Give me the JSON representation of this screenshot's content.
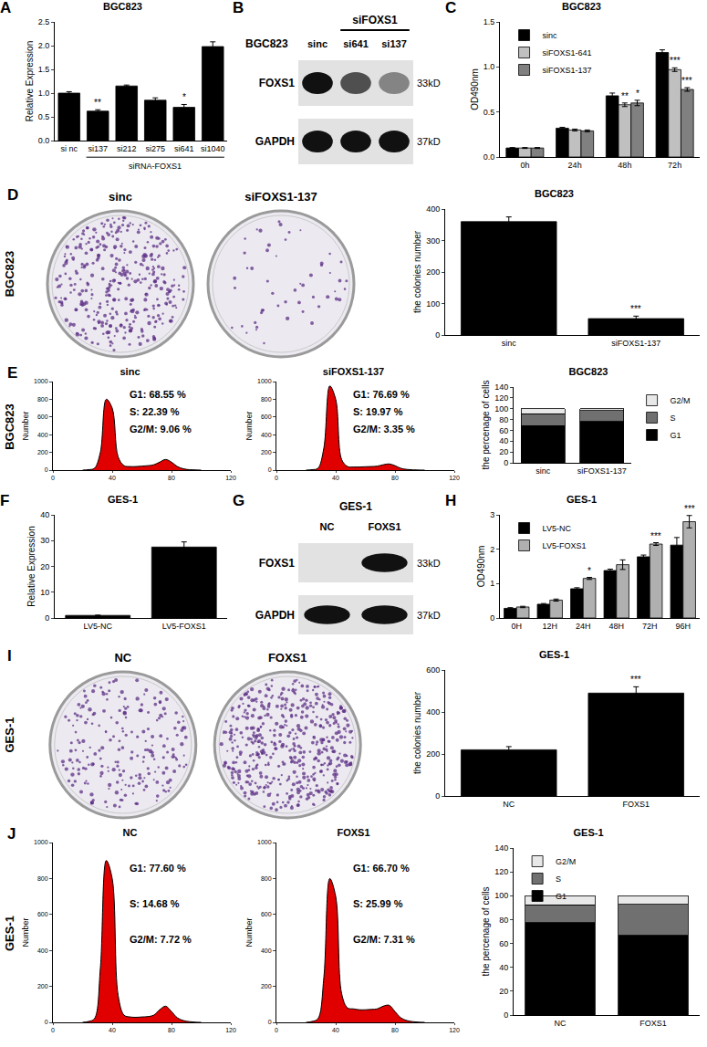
{
  "chart_data": [
    {
      "panel": "A",
      "type": "bar",
      "title": "BGC823",
      "categories": [
        "si nc",
        "si137",
        "si212",
        "si275",
        "si641",
        "si1040"
      ],
      "values": [
        1,
        0.62,
        1.15,
        0.85,
        0.7,
        1.98
      ],
      "errors": [
        0.03,
        0.03,
        0.02,
        0.05,
        0.06,
        0.1
      ],
      "color": "#000000",
      "ylabel": "Relative Expression",
      "ylim": [
        0,
        2.5
      ],
      "yticks": [
        {
          "value": 0,
          "label": "0.0"
        },
        {
          "value": 0.5,
          "label": "0.5"
        },
        {
          "value": 1,
          "label": "1.0"
        },
        {
          "value": 1.5,
          "label": "1.5"
        },
        {
          "value": 2,
          "label": "2.0"
        },
        {
          "value": 2.5,
          "label": "2.5"
        }
      ],
      "annotations": [
        {
          "category": "si137",
          "text": "**"
        },
        {
          "category": "si641",
          "text": "*"
        }
      ],
      "group_label": {
        "text": "siRNA-FOXS1",
        "from": "si137",
        "to": "si1040"
      }
    },
    {
      "panel": "C",
      "type": "bar",
      "title": "BGC823",
      "categories": [
        "0h",
        "24h",
        "48h",
        "72h"
      ],
      "series": [
        {
          "name": "sinc",
          "color": "#000000",
          "values": [
            0.1,
            0.32,
            0.68,
            1.16
          ],
          "errors": [
            0.005,
            0.01,
            0.03,
            0.03
          ]
        },
        {
          "name": "siFOXS1-641",
          "color": "#c0c0c0",
          "values": [
            0.1,
            0.3,
            0.58,
            0.97
          ],
          "errors": [
            0.005,
            0.01,
            0.02,
            0.02
          ]
        },
        {
          "name": "siFOXS1-137",
          "color": "#808080",
          "values": [
            0.1,
            0.29,
            0.6,
            0.75
          ],
          "errors": [
            0.005,
            0.01,
            0.03,
            0.02
          ]
        }
      ],
      "ylabel": "OD490nm",
      "ylim": [
        0,
        1.5
      ],
      "yticks": [
        {
          "value": 0,
          "label": "0.0"
        },
        {
          "value": 0.5,
          "label": "0.5"
        },
        {
          "value": 1,
          "label": "1.0"
        },
        {
          "value": 1.5,
          "label": "1.5"
        }
      ],
      "legend": "top left",
      "annotations": [
        {
          "category": "48h",
          "series": "siFOXS1-641",
          "text": "**"
        },
        {
          "category": "48h",
          "series": "siFOXS1-137",
          "text": "*"
        },
        {
          "category": "72h",
          "series": "siFOXS1-641",
          "text": "***"
        },
        {
          "category": "72h",
          "series": "siFOXS1-137",
          "text": "***"
        }
      ]
    },
    {
      "type": "bar",
      "title": "BGC823",
      "categories": [
        "sinc",
        "siFOXS1-137"
      ],
      "values": [
        360,
        52
      ],
      "errors": [
        15,
        8
      ],
      "color": "#000000",
      "ylabel": "the colonies number",
      "ylim": [
        0,
        400
      ],
      "yticks": [
        0,
        100,
        200,
        300,
        400
      ],
      "annotations": [
        {
          "category": "siFOXS1-137",
          "text": "***"
        }
      ]
    },
    {
      "panel": "E",
      "type": "line",
      "title": "sinc",
      "x": [
        20,
        24,
        28,
        32,
        36,
        40,
        44,
        48,
        52,
        56,
        60,
        64,
        68,
        72,
        76,
        80,
        84,
        88,
        92,
        96,
        100
      ],
      "values": [
        0,
        5,
        20,
        200,
        800,
        700,
        150,
        50,
        40,
        40,
        45,
        50,
        60,
        90,
        120,
        90,
        40,
        15,
        5,
        2,
        0
      ],
      "color": "#e00000",
      "ylabel": "Number",
      "xlim": [
        0,
        120
      ],
      "xticks": [
        0,
        40,
        80,
        120
      ],
      "ylim": [
        0,
        1000
      ],
      "yticks": [
        0,
        200,
        400,
        600,
        800,
        1000
      ],
      "annotations": [
        "G1: 68.55 %",
        "S: 22.39 %",
        "G2/M: 9.06 %"
      ]
    },
    {
      "type": "line",
      "title": "siFOXS1-137",
      "x": [
        20,
        24,
        28,
        32,
        36,
        40,
        44,
        48,
        52,
        56,
        60,
        64,
        68,
        72,
        76,
        80,
        84,
        88,
        92,
        96,
        100
      ],
      "values": [
        0,
        5,
        20,
        250,
        950,
        800,
        120,
        40,
        35,
        35,
        38,
        40,
        45,
        60,
        70,
        50,
        20,
        8,
        3,
        1,
        0
      ],
      "color": "#e00000",
      "ylabel": "Number",
      "xlim": [
        0,
        120
      ],
      "xticks": [
        0,
        40,
        80,
        120
      ],
      "ylim": [
        0,
        1000
      ],
      "yticks": [
        0,
        200,
        400,
        600,
        800,
        1000
      ],
      "annotations": [
        "G1: 76.69 %",
        "S: 19.97 %",
        "G2/M: 3.35 %"
      ]
    },
    {
      "type": "bar",
      "stacked": true,
      "title": "BGC823",
      "categories": [
        "sinc",
        "siFOXS1-137"
      ],
      "series": [
        {
          "name": "G1",
          "color": "#000000",
          "values": [
            68.55,
            76.69
          ]
        },
        {
          "name": "S",
          "color": "#707070",
          "values": [
            22.39,
            19.97
          ]
        },
        {
          "name": "G2/M",
          "color": "#e8e8e8",
          "values": [
            9.06,
            3.35
          ]
        }
      ],
      "ylabel": "the percenage of cells",
      "ylim": [
        0,
        140
      ],
      "yticks": [
        0,
        20,
        40,
        60,
        80,
        100,
        120,
        140
      ],
      "legend": "right"
    },
    {
      "panel": "F",
      "type": "bar",
      "title": "GES-1",
      "categories": [
        "LV5-NC",
        "LV5-FOXS1"
      ],
      "values": [
        1,
        27.5
      ],
      "errors": [
        0.1,
        2
      ],
      "color": "#000000",
      "ylabel": "Relative Expression",
      "ylim": [
        0,
        40
      ],
      "yticks": [
        0,
        10,
        20,
        30,
        40
      ]
    },
    {
      "panel": "H",
      "type": "bar",
      "title": "GES-1",
      "categories": [
        "0H",
        "12H",
        "24H",
        "48H",
        "72H",
        "96H"
      ],
      "series": [
        {
          "name": "LV5-NC",
          "color": "#000000",
          "values": [
            0.28,
            0.4,
            0.85,
            1.38,
            1.78,
            2.12
          ],
          "errors": [
            0.02,
            0.02,
            0.03,
            0.04,
            0.05,
            0.22
          ]
        },
        {
          "name": "LV5-FOXS1",
          "color": "#b0b0b0",
          "values": [
            0.32,
            0.52,
            1.15,
            1.55,
            2.15,
            2.8
          ],
          "errors": [
            0.02,
            0.03,
            0.03,
            0.14,
            0.04,
            0.18
          ]
        }
      ],
      "ylabel": "OD490nm",
      "ylim": [
        0,
        3
      ],
      "yticks": [
        0,
        1,
        2,
        3
      ],
      "legend": "top left",
      "annotations": [
        {
          "category": "24H",
          "series": "LV5-FOXS1",
          "text": "*"
        },
        {
          "category": "72H",
          "series": "LV5-FOXS1",
          "text": "***"
        },
        {
          "category": "96H",
          "series": "LV5-FOXS1",
          "text": "***"
        }
      ]
    },
    {
      "type": "bar",
      "title": "GES-1",
      "categories": [
        "NC",
        "FOXS1"
      ],
      "values": [
        220,
        490
      ],
      "errors": [
        15,
        30
      ],
      "color": "#000000",
      "ylabel": "the colonies number",
      "ylim": [
        0,
        600
      ],
      "yticks": [
        0,
        200,
        400,
        600
      ],
      "annotations": [
        {
          "category": "FOXS1",
          "text": "***"
        }
      ]
    },
    {
      "panel": "J",
      "type": "line",
      "title": "NC",
      "x": [
        20,
        24,
        28,
        32,
        36,
        40,
        44,
        48,
        52,
        56,
        60,
        64,
        68,
        72,
        76,
        80,
        84,
        88,
        92,
        96,
        100
      ],
      "values": [
        0,
        5,
        20,
        300,
        900,
        800,
        150,
        40,
        30,
        28,
        30,
        32,
        40,
        70,
        90,
        60,
        25,
        10,
        4,
        1,
        0
      ],
      "color": "#e00000",
      "ylabel": "Number",
      "xlim": [
        0,
        120
      ],
      "xticks": [
        0,
        40,
        80,
        120
      ],
      "ylim": [
        0,
        1000
      ],
      "yticks": [
        0,
        200,
        400,
        600,
        800,
        1000
      ],
      "annotations": [
        "G1: 77.60 %",
        "S: 14.68 %",
        "G2/M: 7.72 %"
      ]
    },
    {
      "type": "line",
      "title": "FOXS1",
      "x": [
        20,
        24,
        28,
        32,
        36,
        40,
        44,
        48,
        52,
        56,
        60,
        64,
        68,
        72,
        76,
        80,
        84,
        88,
        92,
        96,
        100
      ],
      "values": [
        0,
        5,
        20,
        250,
        800,
        700,
        160,
        80,
        75,
        70,
        70,
        72,
        75,
        90,
        95,
        60,
        25,
        10,
        4,
        1,
        0
      ],
      "color": "#e00000",
      "ylabel": "Number",
      "xlim": [
        0,
        120
      ],
      "xticks": [
        0,
        40,
        80,
        120
      ],
      "ylim": [
        0,
        1000
      ],
      "yticks": [
        0,
        200,
        400,
        600,
        800,
        1000
      ],
      "annotations": [
        "G1: 66.70 %",
        "S: 25.99 %",
        "G2/M: 7.31 %"
      ]
    },
    {
      "type": "bar",
      "stacked": true,
      "title": "GES-1",
      "categories": [
        "NC",
        "FOXS1"
      ],
      "series": [
        {
          "name": "G1",
          "color": "#000000",
          "values": [
            77.6,
            66.7
          ]
        },
        {
          "name": "S",
          "color": "#707070",
          "values": [
            14.68,
            25.99
          ]
        },
        {
          "name": "G2/M",
          "color": "#e8e8e8",
          "values": [
            7.72,
            7.31
          ]
        }
      ],
      "ylabel": "the percenage of cells",
      "ylim": [
        0,
        140
      ],
      "yticks": [
        0,
        20,
        40,
        60,
        80,
        100,
        120,
        140
      ],
      "legend": "top left"
    }
  ],
  "blots": [
    {
      "panel": "B",
      "title": "BGC823",
      "header": {
        "text": "siFOXS1",
        "lanes": [
          "si641",
          "si137"
        ]
      },
      "lanes": [
        "sinc",
        "si641",
        "si137"
      ],
      "rows": [
        {
          "name": "FOXS1",
          "size": "33kD",
          "intensity": [
            1,
            0.7,
            0.45
          ]
        },
        {
          "name": "GAPDH",
          "size": "37kD",
          "intensity": [
            1,
            1,
            1
          ]
        }
      ]
    },
    {
      "panel": "G",
      "title": "GES-1",
      "lanes": [
        "NC",
        "FOXS1"
      ],
      "rows": [
        {
          "name": "FOXS1",
          "size": "33kD",
          "intensity": [
            0,
            1
          ]
        },
        {
          "name": "GAPDH",
          "size": "37kD",
          "intensity": [
            1,
            1
          ]
        }
      ]
    }
  ],
  "dishes": [
    {
      "panel": "D",
      "labels": [
        "sinc",
        "siFOXS1-137"
      ]
    },
    {
      "panel": "I",
      "labels": [
        "NC",
        "FOXS1"
      ]
    }
  ],
  "side_labels": [
    "BGC823",
    "BGC823",
    "GES-1",
    "GES-1"
  ]
}
